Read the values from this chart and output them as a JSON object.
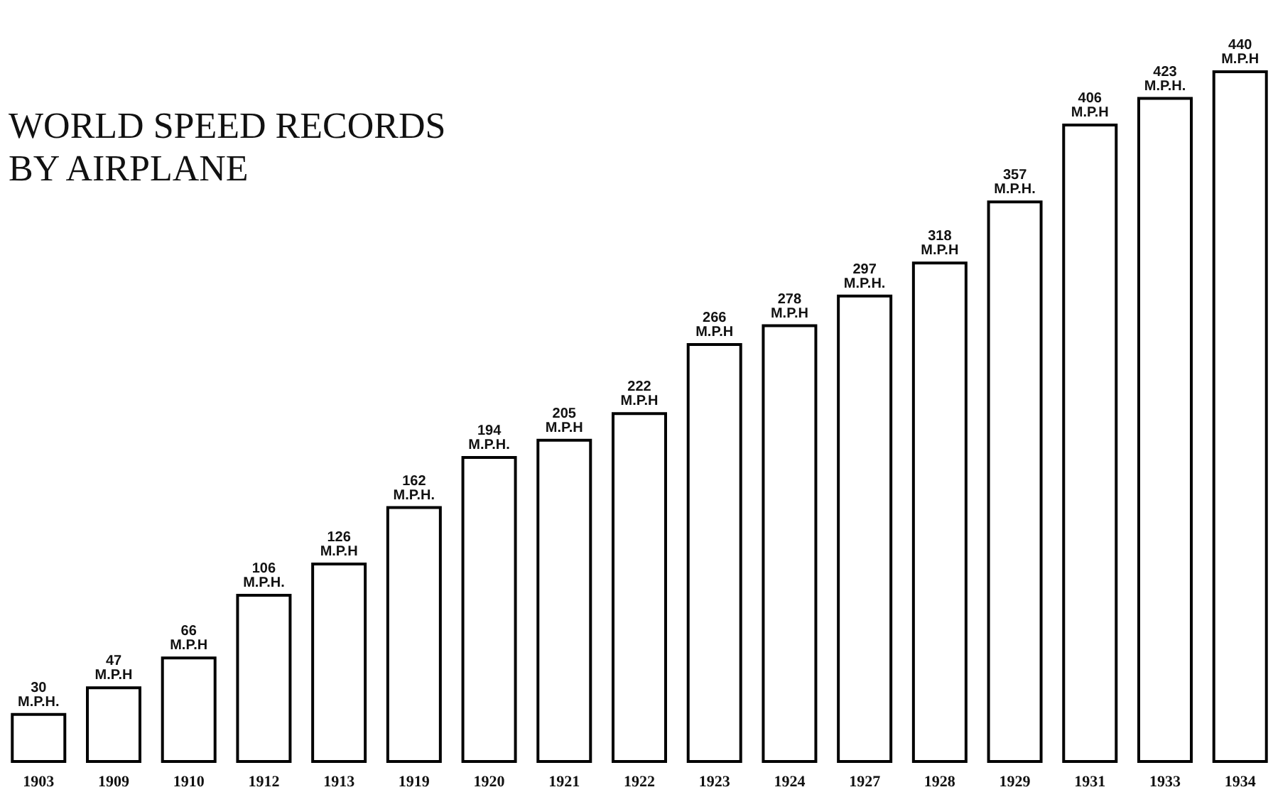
{
  "chart_data": {
    "type": "bar",
    "title": "WORLD SPEED RECORDS BY AIRPLANE",
    "categories": [
      "1903",
      "1909",
      "1910",
      "1912",
      "1913",
      "1919",
      "1920",
      "1921",
      "1922",
      "1923",
      "1924",
      "1927",
      "1928",
      "1929",
      "1931",
      "1933",
      "1934"
    ],
    "values": [
      30,
      47,
      66,
      106,
      126,
      162,
      194,
      205,
      222,
      266,
      278,
      297,
      318,
      357,
      406,
      423,
      440
    ],
    "value_labels": [
      "30 M.P.H.",
      "47 M.P.H",
      "66 M.P.H",
      "106 M.P.H.",
      "126 M.P.H",
      "162 M.P.H.",
      "194 M.P.H.",
      "205 M.P.H",
      "222 M.P.H",
      "266 M.P.H",
      "278 M.P.H",
      "297 M.P.H.",
      "318 M.P.H",
      "357 M.P.H.",
      "406 M.P.H",
      "423 M.P.H.",
      "440 M.P.H"
    ],
    "color": "#ffffff"
  }
}
